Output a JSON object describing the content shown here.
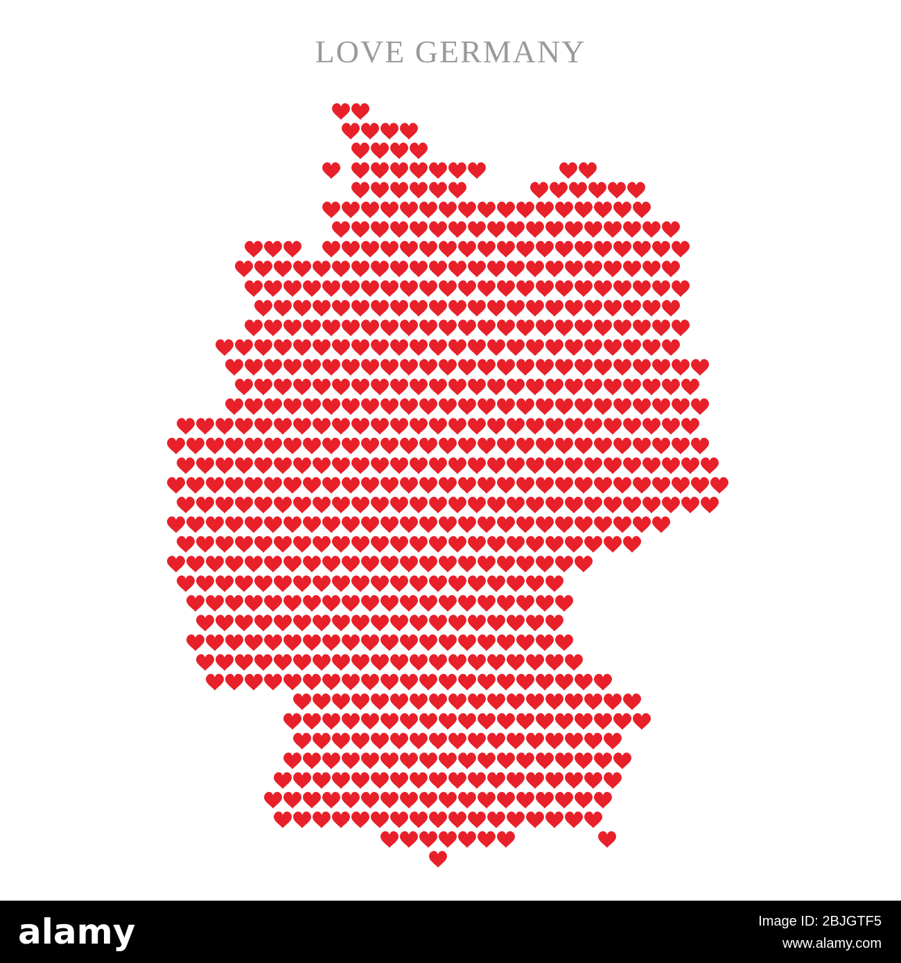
{
  "header": {
    "title": "LOVE GERMANY"
  },
  "footer": {
    "brand": "alamy",
    "image_id": "Image ID: 2BJGTF5",
    "url": "www.alamy.com"
  }
}
